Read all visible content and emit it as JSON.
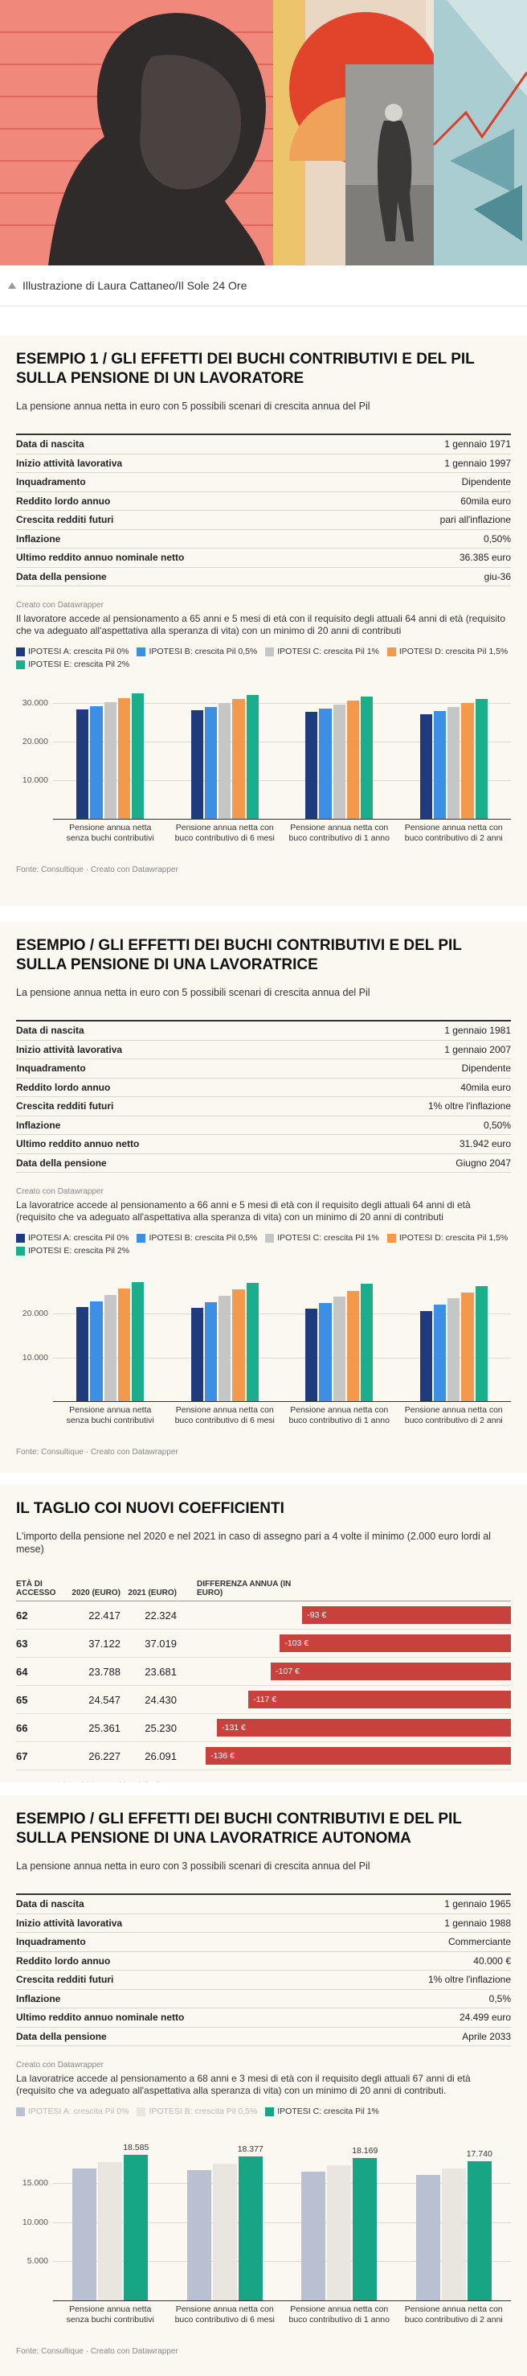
{
  "caption": "Illustrazione di Laura Cattaneo/Il Sole 24 Ore",
  "chart_data": [
    {
      "type": "bar",
      "title": "ESEMPIO 1 / GLI EFFETTI DEI BUCHI CONTRIBUTIVI E DEL PIL SULLA PENSIONE DI UN LAVORATORE",
      "subtitle": "La pensione annua netta in euro con 5 possibili scenari di crescita annua del Pil",
      "details": [
        [
          "Data di nascita",
          "1 gennaio 1971"
        ],
        [
          "Inizio attività lavorativa",
          "1 gennaio 1997"
        ],
        [
          "Inquadramento",
          "Dipendente"
        ],
        [
          "Reddito lordo annuo",
          "60mila euro"
        ],
        [
          "Crescita redditi futuri",
          "pari all'inflazione"
        ],
        [
          "Inflazione",
          "0,50%"
        ],
        [
          "Ultimo reddito annuo nominale netto",
          "36.385 euro"
        ],
        [
          "Data della pensione",
          "giu-36"
        ]
      ],
      "credit": "Creato con Datawrapper",
      "note": "Il lavoratore accede al pensionamento a 65 anni e 5 mesi di età con il requisito degli attuali 64 anni di età (requisito che va adeguato all'aspettativa alla speranza di vita) con un minimo di 20 anni di contributi",
      "categories": [
        "Pensione annua netta senza buchi contributivi",
        "Pensione annua netta con buco contributivo di 6 mesi",
        "Pensione annua netta con buco contributivo di 1 anno",
        "Pensione annua netta con buco contributivo di 2 anni"
      ],
      "series": [
        {
          "name": "IPOTESI A: crescita Pil 0%",
          "color": "#1f3a7d",
          "values": [
            28400,
            28100,
            27700,
            27100
          ]
        },
        {
          "name": "IPOTESI B: crescita Pil 0,5%",
          "color": "#3d8fe6",
          "values": [
            29200,
            28900,
            28500,
            27900
          ]
        },
        {
          "name": "IPOTESI C: crescita Pil 1%",
          "color": "#c6c6c6",
          "values": [
            30300,
            30000,
            29600,
            29000
          ]
        },
        {
          "name": "IPOTESI D: crescita Pil 1,5%",
          "color": "#f2994b",
          "values": [
            31300,
            31000,
            30600,
            30000
          ]
        },
        {
          "name": "IPOTESI E: crescita Pil 2%",
          "color": "#1bae8b",
          "values": [
            32400,
            32100,
            31700,
            31100
          ]
        }
      ],
      "ylim": [
        0,
        35000
      ],
      "yticks": [
        {
          "value": 10000,
          "label": "10.000"
        },
        {
          "value": 20000,
          "label": "20.000"
        },
        {
          "value": 30000,
          "label": "30.000"
        }
      ],
      "grid": true,
      "source": "Fonte: Consultique · Creato con Datawrapper"
    },
    {
      "type": "bar",
      "title": "ESEMPIO / GLI EFFETTI DEI BUCHI CONTRIBUTIVI E DEL PIL SULLA PENSIONE DI UNA LAVORATRICE",
      "subtitle": "La pensione annua netta in euro con 5 possibili scenari di crescita annua del Pil",
      "details": [
        [
          "Data di nascita",
          "1 gennaio 1981"
        ],
        [
          "Inizio attività lavorativa",
          "1 gennaio 2007"
        ],
        [
          "Inquadramento",
          "Dipendente"
        ],
        [
          "Reddito lordo annuo",
          "40mila euro"
        ],
        [
          "Crescita redditi futuri",
          "1% oltre l'inflazione"
        ],
        [
          "Inflazione",
          "0,50%"
        ],
        [
          "Ultimo reddito annuo netto",
          "31.942 euro"
        ],
        [
          "Data della pensione",
          "Giugno 2047"
        ]
      ],
      "credit": "Creato con Datawrapper",
      "note": "La lavoratrice accede al pensionamento a 66 anni e 5 mesi di età con il requisito degli attuali 64 anni di età (requisito che va adeguato all'aspettativa alla speranza di vita) con un minimo di 20 anni di contributi",
      "categories": [
        "Pensione annua netta senza buchi contributivi",
        "Pensione annua netta con buco contributivo di 6 mesi",
        "Pensione annua netta con buco contributivo di 1 anno",
        "Pensione annua netta con buco contributivo di 2 anni"
      ],
      "series": [
        {
          "name": "IPOTESI A: crescita Pil 0%",
          "color": "#1f3a7d",
          "values": [
            21500,
            21300,
            21100,
            20700
          ]
        },
        {
          "name": "IPOTESI B: crescita Pil 0,5%",
          "color": "#3d8fe6",
          "values": [
            22900,
            22700,
            22500,
            22100
          ]
        },
        {
          "name": "IPOTESI C: crescita Pil 1%",
          "color": "#c6c6c6",
          "values": [
            24300,
            24100,
            23900,
            23500
          ]
        },
        {
          "name": "IPOTESI D: crescita Pil 1,5%",
          "color": "#f2994b",
          "values": [
            25700,
            25500,
            25300,
            24900
          ]
        },
        {
          "name": "IPOTESI E: crescita Pil 2%",
          "color": "#1bae8b",
          "values": [
            27200,
            27000,
            26800,
            26300
          ]
        }
      ],
      "ylim": [
        0,
        30000
      ],
      "yticks": [
        {
          "value": 10000,
          "label": "10.000"
        },
        {
          "value": 20000,
          "label": "20.000"
        }
      ],
      "grid": true,
      "source": "Fonte: Consultique · Creato con Datawrapper"
    },
    {
      "type": "table_bar",
      "title": "IL TAGLIO COI NUOVI COEFFICIENTI",
      "subtitle": "L'importo della pensione nel 2020 e nel 2021 in caso di assegno pari a 4 volte il minimo (2.000 euro lordi al mese)",
      "columns": [
        "ETÀ DI ACCESSO",
        "2020 (EURO)",
        "2021 (EURO)",
        "DIFFERENZA ANNUA (IN EURO)"
      ],
      "rows": [
        [
          "62",
          "22.417",
          "22.324"
        ],
        [
          "63",
          "37.122",
          "37.019"
        ],
        [
          "64",
          "23.788",
          "23.681"
        ],
        [
          "65",
          "24.547",
          "24.430"
        ],
        [
          "66",
          "25.361",
          "25.230"
        ],
        [
          "67",
          "26.227",
          "26.091"
        ]
      ],
      "values": [
        -93,
        -103,
        -107,
        -117,
        -131,
        -136
      ],
      "value_labels": [
        "-93 €",
        "-103 €",
        "-107 €",
        "-117 €",
        "-131 €",
        "-136 €"
      ],
      "color": "#c8413d",
      "xlim": [
        -140,
        0
      ],
      "source": "Fonte: Servizio politiche previdenziali Uil · Creato con Datawrapper"
    },
    {
      "type": "bar",
      "title": "ESEMPIO / GLI EFFETTI DEI BUCHI CONTRIBUTIVI E DEL PIL SULLA PENSIONE DI UNA LAVORATRICE AUTONOMA",
      "subtitle": "La pensione annua netta in euro con 3 possibili scenari di crescita annua del Pil",
      "details": [
        [
          "Data di nascita",
          "1 gennaio 1965"
        ],
        [
          "Inizio attività lavorativa",
          "1 gennaio 1988"
        ],
        [
          "Inquadramento",
          "Commerciante"
        ],
        [
          "Reddito lordo annuo",
          "40.000 €"
        ],
        [
          "Crescita redditi futuri",
          "1% oltre l'inflazione"
        ],
        [
          "Inflazione",
          "0,5%"
        ],
        [
          "Ultimo reddito annuo nominale netto",
          "24.499 euro"
        ],
        [
          "Data della pensione",
          "Aprile 2033"
        ]
      ],
      "credit": "Creato con Datawrapper",
      "note": "La lavoratrice accede al pensionamento a 68 anni e 3 mesi di età con il requisito degli attuali 67 anni di età (requisito che va adeguato all'aspettativa alla speranza di vita) con un minimo di 20 anni di contributi.",
      "categories": [
        "Pensione annua netta senza buchi contributivi",
        "Pensione annua netta con buco contributivo di 6 mesi",
        "Pensione annua netta con buco contributivo di 1 anno",
        "Pensione annua netta con buco contributivo di 2 anni"
      ],
      "series": [
        {
          "name": "IPOTESI A: crescita Pil 0%",
          "color": "#b8c0d2",
          "values": [
            16800,
            16600,
            16400,
            16000
          ]
        },
        {
          "name": "IPOTESI B: crescita Pil 0,5%",
          "color": "#e9e5df",
          "values": [
            17600,
            17400,
            17200,
            16800
          ]
        },
        {
          "name": "IPOTESI C: crescita Pil 1%",
          "color": "#18a585",
          "values": [
            18585,
            18377,
            18169,
            17740
          ],
          "value_labels": [
            "18.585",
            "18.377",
            "18.169",
            "17.740"
          ]
        }
      ],
      "ylim": [
        0,
        20000
      ],
      "yticks": [
        {
          "value": 5000,
          "label": "5.000"
        },
        {
          "value": 10000,
          "label": "10.000"
        },
        {
          "value": 15000,
          "label": "15.000"
        }
      ],
      "grid": true,
      "source": "Fonte: Consultique · Creato con Datawrapper"
    }
  ]
}
